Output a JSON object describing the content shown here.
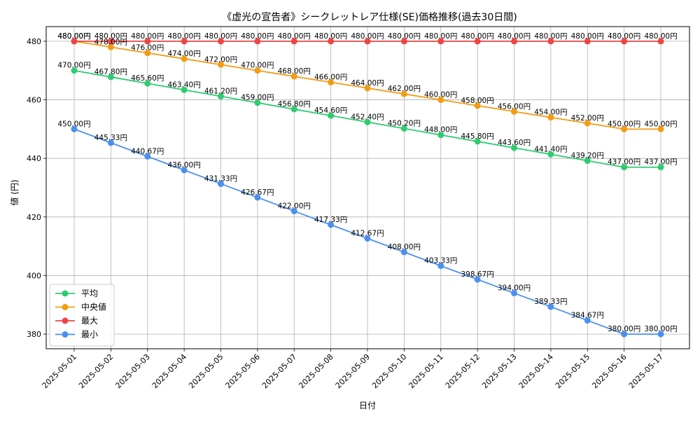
{
  "chart_data": {
    "type": "line",
    "title": "《虚光の宣告者》シークレットレア仕様(SE)価格推移(過去30日間)",
    "xlabel": "日付",
    "ylabel": "値 (円)",
    "ylim": [
      375,
      485
    ],
    "yticks": [
      380,
      400,
      420,
      440,
      460,
      480
    ],
    "grid": true,
    "legend_position": "lower-left",
    "label_suffix": "円",
    "categories": [
      "2025-05-01",
      "2025-05-02",
      "2025-05-03",
      "2025-05-04",
      "2025-05-05",
      "2025-05-06",
      "2025-05-07",
      "2025-05-08",
      "2025-05-09",
      "2025-05-10",
      "2025-05-11",
      "2025-05-12",
      "2025-05-13",
      "2025-05-14",
      "2025-05-15",
      "2025-05-16",
      "2025-05-17"
    ],
    "series": [
      {
        "name": "平均",
        "color": "#2ecc71",
        "values": [
          470.0,
          467.8,
          465.6,
          463.4,
          461.2,
          459.0,
          456.8,
          454.6,
          452.4,
          450.2,
          448.0,
          445.8,
          443.6,
          441.4,
          439.2,
          437.0,
          437.0
        ]
      },
      {
        "name": "中央値",
        "color": "#f39c12",
        "values": [
          480.0,
          478.0,
          476.0,
          474.0,
          472.0,
          470.0,
          468.0,
          466.0,
          464.0,
          462.0,
          460.0,
          458.0,
          456.0,
          454.0,
          452.0,
          450.0,
          450.0
        ]
      },
      {
        "name": "最大",
        "color": "#ef4444",
        "values": [
          480.0,
          480.0,
          480.0,
          480.0,
          480.0,
          480.0,
          480.0,
          480.0,
          480.0,
          480.0,
          480.0,
          480.0,
          480.0,
          480.0,
          480.0,
          480.0,
          480.0
        ]
      },
      {
        "name": "最小",
        "color": "#4a90f0",
        "values": [
          450.0,
          445.33,
          440.67,
          436.0,
          431.33,
          426.67,
          422.0,
          417.33,
          412.67,
          408.0,
          403.33,
          398.67,
          394.0,
          389.33,
          384.67,
          380.0,
          380.0
        ]
      }
    ]
  }
}
